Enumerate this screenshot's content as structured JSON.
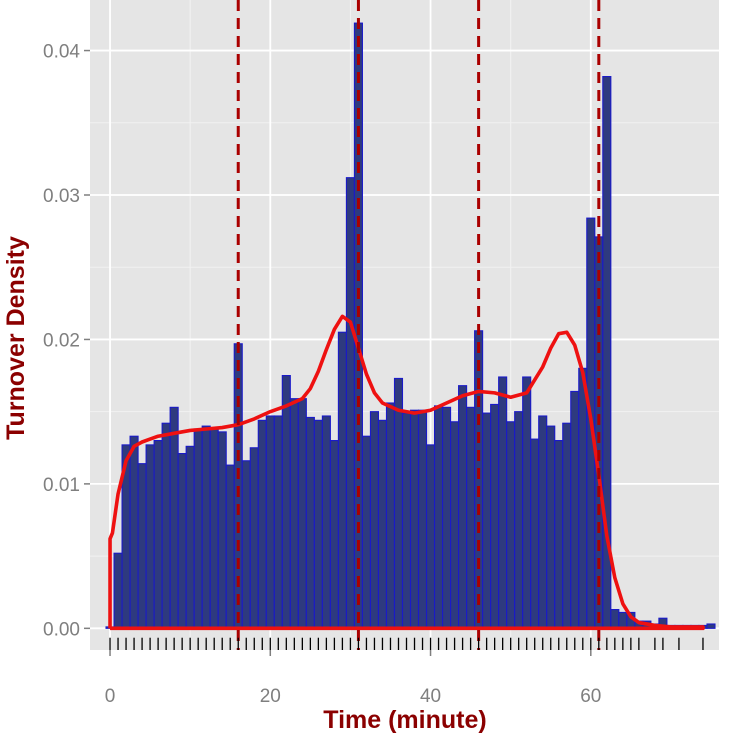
{
  "chart_data": {
    "type": "bar",
    "title": "",
    "xlabel": "Time (minute)",
    "ylabel": "Turnover Density",
    "xlim": [
      -2.5,
      76
    ],
    "ylim": [
      -0.0015,
      0.0435
    ],
    "x_ticks": [
      0,
      20,
      40,
      60
    ],
    "x_tick_labels": [
      "0",
      "20",
      "40",
      "60"
    ],
    "y_ticks": [
      0,
      0.01,
      0.02,
      0.03,
      0.04
    ],
    "y_tick_labels": [
      "0.00",
      "0.01",
      "0.02",
      "0.03",
      "0.04"
    ],
    "grid": true,
    "bin_width": 1,
    "bins_start": -0.5,
    "histogram_values": [
      0.0001,
      0.0052,
      0.0127,
      0.0133,
      0.0114,
      0.0127,
      0.013,
      0.0142,
      0.0153,
      0.0121,
      0.0126,
      0.0138,
      0.014,
      0.0139,
      0.0136,
      0.0113,
      0.0197,
      0.0116,
      0.0125,
      0.0144,
      0.0147,
      0.0147,
      0.0175,
      0.0159,
      0.0159,
      0.0146,
      0.0144,
      0.0147,
      0.013,
      0.0205,
      0.0312,
      0.0419,
      0.0133,
      0.015,
      0.0144,
      0.0156,
      0.0173,
      0.0149,
      0.0151,
      0.0151,
      0.0127,
      0.0154,
      0.0153,
      0.0143,
      0.0168,
      0.0153,
      0.0206,
      0.0149,
      0.0155,
      0.0174,
      0.0143,
      0.015,
      0.0174,
      0.0131,
      0.0147,
      0.014,
      0.013,
      0.0142,
      0.0164,
      0.018,
      0.0284,
      0.0271,
      0.0382,
      0.0013,
      0.0011,
      0.0011,
      0.0005,
      0.0005,
      0.0003,
      0.0007,
      0.0002,
      0.0002,
      0.0002,
      0.0002,
      0.0002,
      0.0003
    ],
    "density_curve": {
      "x": [
        0,
        0.3,
        1,
        2,
        3,
        4,
        5,
        6,
        8,
        10,
        12,
        14,
        16,
        18,
        20,
        22,
        24,
        25,
        26,
        27,
        28,
        29,
        30,
        31,
        32,
        33,
        34,
        36,
        38,
        40,
        42,
        44,
        46,
        48,
        50,
        52,
        54,
        55,
        56,
        57,
        58,
        59,
        60,
        61,
        62,
        63,
        64,
        65,
        66,
        68,
        70,
        72,
        74
      ],
      "y": [
        0.0062,
        0.0066,
        0.0093,
        0.0116,
        0.0126,
        0.0129,
        0.0131,
        0.0133,
        0.0135,
        0.0137,
        0.0138,
        0.0139,
        0.0141,
        0.0145,
        0.015,
        0.0154,
        0.0159,
        0.0166,
        0.0178,
        0.0193,
        0.0207,
        0.0216,
        0.0212,
        0.0194,
        0.0176,
        0.0163,
        0.0156,
        0.0151,
        0.0149,
        0.0151,
        0.0156,
        0.0161,
        0.0164,
        0.0163,
        0.016,
        0.0163,
        0.0181,
        0.0194,
        0.0204,
        0.0205,
        0.0196,
        0.0177,
        0.0145,
        0.0106,
        0.0064,
        0.0035,
        0.0017,
        0.0008,
        0.0004,
        0.0002,
        0.0001,
        0.0001,
        0.0001
      ]
    },
    "vlines": [
      16,
      31,
      46,
      61
    ],
    "rug_x": [
      0,
      1,
      2,
      3,
      4,
      5,
      6,
      7,
      8,
      9,
      10,
      11,
      12,
      13,
      14,
      15,
      16,
      17,
      18,
      19,
      20,
      21,
      22,
      23,
      24,
      25,
      26,
      27,
      28,
      29,
      30,
      31,
      32,
      33,
      34,
      35,
      36,
      37,
      38,
      39,
      40,
      41,
      42,
      43,
      44,
      45,
      46,
      47,
      48,
      49,
      50,
      51,
      52,
      53,
      54,
      55,
      56,
      57,
      58,
      59,
      60,
      61,
      62,
      63,
      64,
      65,
      66,
      68,
      69,
      71,
      74
    ],
    "colors": {
      "panel_bg": "#e5e5e5",
      "grid": "#ffffff",
      "bar_fill": "#2e3a7f",
      "bar_stroke": "#1a1ac8",
      "curve": "#ee1111",
      "vline": "#aa0000",
      "rug": "#000000",
      "tick_label": "#7f7f7f",
      "axis_title": "#8b0000"
    }
  }
}
